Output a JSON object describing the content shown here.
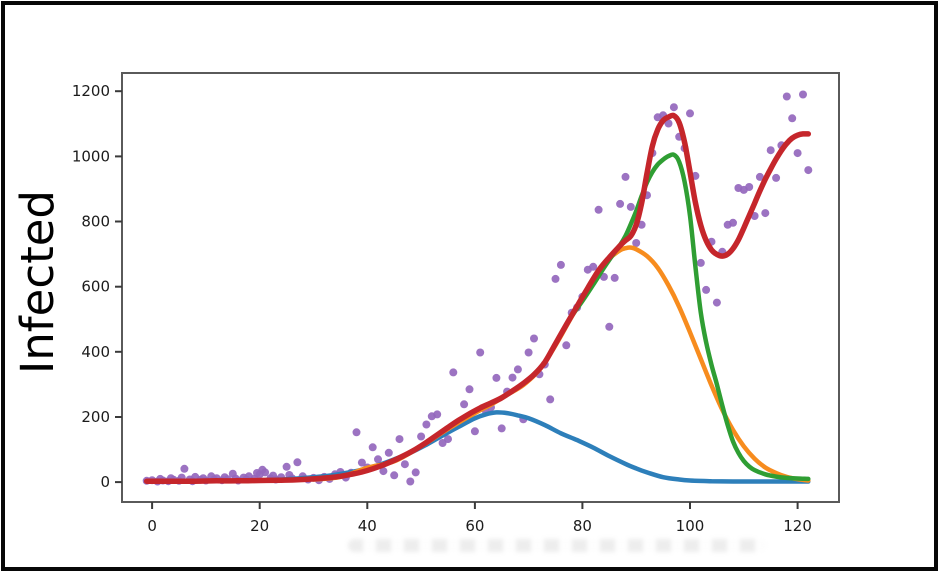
{
  "figure": {
    "background": "#ffffff",
    "frame_color": "#070707",
    "spine_color": "#5a5a5a",
    "tick_color": "#3a3a3a",
    "tick_label_color": "#1c1c1c"
  },
  "chart_data": {
    "type": "scatter+line",
    "title": "",
    "xlabel": "",
    "ylabel": "Infected",
    "xlim": [
      -5.6,
      127.7
    ],
    "ylim": [
      -61,
      1256
    ],
    "x_ticks": [
      0,
      20,
      40,
      60,
      80,
      100,
      120
    ],
    "y_ticks": [
      0,
      200,
      400,
      600,
      800,
      1000,
      1200
    ],
    "grid": false,
    "legend_position": "none",
    "scatter": {
      "name": "observed-infected-points",
      "color": "#9467bd",
      "radius": 4,
      "opacity": 0.92,
      "points": [
        [
          -1,
          4
        ],
        [
          0,
          6
        ],
        [
          1,
          2
        ],
        [
          1.5,
          10
        ],
        [
          2,
          5
        ],
        [
          3,
          3
        ],
        [
          3.5,
          12
        ],
        [
          4,
          7
        ],
        [
          5,
          4
        ],
        [
          5.5,
          14
        ],
        [
          6,
          41
        ],
        [
          7,
          8
        ],
        [
          7.5,
          3
        ],
        [
          8,
          16
        ],
        [
          9,
          7
        ],
        [
          9.5,
          12
        ],
        [
          10,
          5
        ],
        [
          11,
          18
        ],
        [
          11.5,
          8
        ],
        [
          12,
          12
        ],
        [
          13,
          6
        ],
        [
          13.5,
          15
        ],
        [
          14,
          9
        ],
        [
          15,
          26
        ],
        [
          15.5,
          11
        ],
        [
          16,
          5
        ],
        [
          17,
          14
        ],
        [
          17.5,
          8
        ],
        [
          18,
          18
        ],
        [
          19,
          10
        ],
        [
          19.5,
          28
        ],
        [
          20,
          24
        ],
        [
          20.5,
          38
        ],
        [
          21,
          30
        ],
        [
          22,
          12
        ],
        [
          22.5,
          20
        ],
        [
          23,
          8
        ],
        [
          24,
          15
        ],
        [
          25,
          47
        ],
        [
          25.5,
          22
        ],
        [
          26,
          12
        ],
        [
          27,
          61
        ],
        [
          28,
          18
        ],
        [
          29,
          8
        ],
        [
          30,
          13
        ],
        [
          31,
          6
        ],
        [
          32,
          16
        ],
        [
          33,
          10
        ],
        [
          34,
          24
        ],
        [
          35,
          31
        ],
        [
          36,
          14
        ],
        [
          37,
          29
        ],
        [
          38,
          153
        ],
        [
          39,
          60
        ],
        [
          40,
          45
        ],
        [
          41,
          107
        ],
        [
          42,
          70
        ],
        [
          43,
          34
        ],
        [
          44,
          90
        ],
        [
          45,
          21
        ],
        [
          46,
          132
        ],
        [
          47,
          55
        ],
        [
          48,
          2
        ],
        [
          49,
          30
        ],
        [
          50,
          140
        ],
        [
          51,
          177
        ],
        [
          52,
          202
        ],
        [
          53,
          208
        ],
        [
          54,
          120
        ],
        [
          55,
          132
        ],
        [
          56,
          337
        ],
        [
          57,
          180
        ],
        [
          58,
          239
        ],
        [
          59,
          285
        ],
        [
          60,
          156
        ],
        [
          61,
          398
        ],
        [
          62,
          220
        ],
        [
          63,
          230
        ],
        [
          64,
          320
        ],
        [
          65,
          165
        ],
        [
          66,
          278
        ],
        [
          67,
          321
        ],
        [
          68,
          346
        ],
        [
          69,
          193
        ],
        [
          70,
          398
        ],
        [
          71,
          441
        ],
        [
          72,
          331
        ],
        [
          73,
          361
        ],
        [
          74,
          254
        ],
        [
          75,
          624
        ],
        [
          76,
          667
        ],
        [
          77,
          420
        ],
        [
          78,
          520
        ],
        [
          79,
          536
        ],
        [
          80,
          569
        ],
        [
          81,
          652
        ],
        [
          82,
          661
        ],
        [
          83,
          836
        ],
        [
          84,
          630
        ],
        [
          85,
          477
        ],
        [
          86,
          627
        ],
        [
          87,
          854
        ],
        [
          88,
          937
        ],
        [
          89,
          845
        ],
        [
          90,
          734
        ],
        [
          91,
          790
        ],
        [
          92,
          881
        ],
        [
          93,
          1010
        ],
        [
          94,
          1120
        ],
        [
          95,
          1126
        ],
        [
          96,
          1101
        ],
        [
          97,
          1151
        ],
        [
          98,
          1060
        ],
        [
          99,
          1025
        ],
        [
          100,
          1132
        ],
        [
          101,
          940
        ],
        [
          102,
          673
        ],
        [
          103,
          590
        ],
        [
          104,
          738
        ],
        [
          105,
          551
        ],
        [
          106,
          707
        ],
        [
          107,
          790
        ],
        [
          108,
          796
        ],
        [
          109,
          903
        ],
        [
          110,
          897
        ],
        [
          111,
          906
        ],
        [
          112,
          817
        ],
        [
          113,
          937
        ],
        [
          114,
          826
        ],
        [
          115,
          1019
        ],
        [
          116,
          934
        ],
        [
          117,
          1034
        ],
        [
          118,
          1184
        ],
        [
          119,
          1117
        ],
        [
          120,
          1010
        ],
        [
          121,
          1190
        ],
        [
          122,
          958
        ]
      ]
    },
    "series": [
      {
        "name": "wave-1-component",
        "color": "#2d7fba",
        "width": 4.5,
        "points": [
          [
            -1,
            2
          ],
          [
            5,
            2
          ],
          [
            10,
            3
          ],
          [
            15,
            4
          ],
          [
            20,
            6
          ],
          [
            25,
            9
          ],
          [
            30,
            15
          ],
          [
            33,
            20
          ],
          [
            36,
            28
          ],
          [
            39,
            38
          ],
          [
            42,
            52
          ],
          [
            45,
            70
          ],
          [
            48,
            90
          ],
          [
            51,
            115
          ],
          [
            54,
            143
          ],
          [
            57,
            170
          ],
          [
            60,
            196
          ],
          [
            62,
            208
          ],
          [
            64,
            214
          ],
          [
            66,
            212
          ],
          [
            68,
            205
          ],
          [
            70,
            196
          ],
          [
            73,
            175
          ],
          [
            76,
            150
          ],
          [
            79,
            129
          ],
          [
            82,
            106
          ],
          [
            85,
            80
          ],
          [
            88,
            56
          ],
          [
            90,
            42
          ],
          [
            92,
            30
          ],
          [
            95,
            15
          ],
          [
            98,
            8
          ],
          [
            100,
            5
          ],
          [
            104,
            3
          ],
          [
            108,
            2
          ],
          [
            112,
            2
          ],
          [
            117,
            2
          ],
          [
            122,
            2
          ]
        ]
      },
      {
        "name": "wave-2-component",
        "color": "#f78c1e",
        "width": 4.5,
        "points": [
          [
            30,
            8
          ],
          [
            35,
            16
          ],
          [
            40,
            44
          ],
          [
            45,
            64
          ],
          [
            50,
            110
          ],
          [
            55,
            163
          ],
          [
            60,
            212
          ],
          [
            63,
            238
          ],
          [
            66,
            268
          ],
          [
            69,
            298
          ],
          [
            72,
            345
          ],
          [
            75,
            420
          ],
          [
            78,
            508
          ],
          [
            81,
            592
          ],
          [
            83,
            645
          ],
          [
            85,
            686
          ],
          [
            87,
            712
          ],
          [
            88,
            718
          ],
          [
            89,
            720
          ],
          [
            90,
            715
          ],
          [
            92,
            694
          ],
          [
            94,
            658
          ],
          [
            96,
            604
          ],
          [
            98,
            538
          ],
          [
            100,
            460
          ],
          [
            102,
            378
          ],
          [
            104,
            297
          ],
          [
            106,
            222
          ],
          [
            108,
            160
          ],
          [
            110,
            110
          ],
          [
            112,
            72
          ],
          [
            114,
            45
          ],
          [
            116,
            28
          ],
          [
            118,
            16
          ],
          [
            120,
            9
          ],
          [
            122,
            5
          ]
        ]
      },
      {
        "name": "wave-3-component",
        "color": "#2f9e33",
        "width": 4.5,
        "points": [
          [
            78,
            510
          ],
          [
            80,
            556
          ],
          [
            82,
            606
          ],
          [
            84,
            658
          ],
          [
            86,
            706
          ],
          [
            87,
            728
          ],
          [
            88,
            756
          ],
          [
            89,
            792
          ],
          [
            90,
            832
          ],
          [
            91,
            878
          ],
          [
            92,
            920
          ],
          [
            93,
            952
          ],
          [
            94,
            975
          ],
          [
            95,
            990
          ],
          [
            96,
            1001
          ],
          [
            97,
            1005
          ],
          [
            98,
            983
          ],
          [
            99,
            922
          ],
          [
            100,
            818
          ],
          [
            101,
            662
          ],
          [
            102,
            520
          ],
          [
            103,
            430
          ],
          [
            104,
            360
          ],
          [
            105,
            300
          ],
          [
            106,
            235
          ],
          [
            107,
            175
          ],
          [
            108,
            125
          ],
          [
            109,
            90
          ],
          [
            110,
            65
          ],
          [
            111,
            48
          ],
          [
            112,
            37
          ],
          [
            114,
            24
          ],
          [
            116,
            17
          ],
          [
            118,
            13
          ],
          [
            120,
            11
          ],
          [
            122,
            10
          ]
        ]
      },
      {
        "name": "total-fit",
        "color": "#c5262b",
        "width": 5.5,
        "points": [
          [
            -1,
            3
          ],
          [
            4,
            3
          ],
          [
            8,
            3
          ],
          [
            12,
            4
          ],
          [
            16,
            4
          ],
          [
            20,
            5
          ],
          [
            24,
            6
          ],
          [
            27,
            7
          ],
          [
            30,
            10
          ],
          [
            33,
            14
          ],
          [
            35,
            18
          ],
          [
            37,
            24
          ],
          [
            39,
            31
          ],
          [
            41,
            41
          ],
          [
            43,
            53
          ],
          [
            45,
            67
          ],
          [
            47,
            83
          ],
          [
            49,
            101
          ],
          [
            51,
            122
          ],
          [
            53,
            145
          ],
          [
            55,
            168
          ],
          [
            57,
            190
          ],
          [
            59,
            210
          ],
          [
            61,
            228
          ],
          [
            63,
            243
          ],
          [
            65,
            259
          ],
          [
            67,
            280
          ],
          [
            69,
            303
          ],
          [
            71,
            330
          ],
          [
            73,
            368
          ],
          [
            75,
            425
          ],
          [
            77,
            483
          ],
          [
            79,
            540
          ],
          [
            81,
            596
          ],
          [
            83,
            650
          ],
          [
            85,
            690
          ],
          [
            87,
            726
          ],
          [
            88,
            742
          ],
          [
            89,
            756
          ],
          [
            90,
            790
          ],
          [
            91,
            856
          ],
          [
            92,
            948
          ],
          [
            93,
            1032
          ],
          [
            94,
            1082
          ],
          [
            95,
            1110
          ],
          [
            96,
            1121
          ],
          [
            97,
            1125
          ],
          [
            98,
            1103
          ],
          [
            99,
            1043
          ],
          [
            100,
            952
          ],
          [
            101,
            858
          ],
          [
            102,
            788
          ],
          [
            103,
            742
          ],
          [
            104,
            713
          ],
          [
            105,
            699
          ],
          [
            106,
            694
          ],
          [
            107,
            700
          ],
          [
            108,
            717
          ],
          [
            109,
            744
          ],
          [
            110,
            780
          ],
          [
            111,
            818
          ],
          [
            112,
            856
          ],
          [
            113,
            894
          ],
          [
            114,
            930
          ],
          [
            115,
            962
          ],
          [
            116,
            992
          ],
          [
            117,
            1018
          ],
          [
            118,
            1040
          ],
          [
            119,
            1056
          ],
          [
            120,
            1065
          ],
          [
            121,
            1069
          ],
          [
            122,
            1069
          ]
        ]
      }
    ]
  }
}
